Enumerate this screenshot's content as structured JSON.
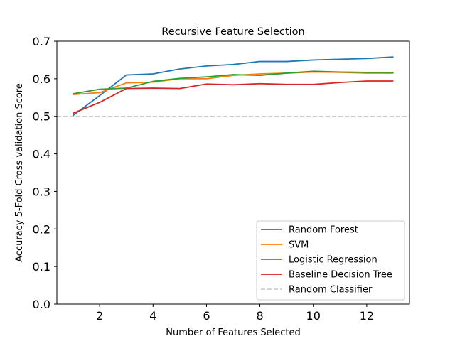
{
  "chart_data": {
    "type": "line",
    "title": "Recursive Feature Selection",
    "xlabel": "Number of Features Selected",
    "ylabel": "Accuracy 5-Fold Cross validation Score",
    "xlim": [
      0.4,
      13.6
    ],
    "ylim": [
      0.0,
      0.7
    ],
    "xticks": [
      "2",
      "4",
      "6",
      "8",
      "10",
      "12"
    ],
    "yticks": [
      "0.0",
      "0.1",
      "0.2",
      "0.3",
      "0.4",
      "0.5",
      "0.6",
      "0.7"
    ],
    "x": [
      1,
      2,
      3,
      4,
      5,
      6,
      7,
      8,
      9,
      10,
      11,
      12,
      13
    ],
    "series": [
      {
        "name": "Random Forest",
        "color": "#1f77b4",
        "values": [
          0.502,
          0.555,
          0.61,
          0.613,
          0.626,
          0.634,
          0.638,
          0.646,
          0.646,
          0.65,
          0.652,
          0.654,
          0.658
        ]
      },
      {
        "name": "SVM",
        "color": "#ff7f0e",
        "values": [
          0.558,
          0.563,
          0.589,
          0.591,
          0.6,
          0.6,
          0.609,
          0.613,
          0.615,
          0.618,
          0.617,
          0.615,
          0.615
        ]
      },
      {
        "name": "Logistic Regression",
        "color": "#2ca02c",
        "values": [
          0.56,
          0.572,
          0.575,
          0.593,
          0.601,
          0.605,
          0.611,
          0.609,
          0.615,
          0.62,
          0.618,
          0.617,
          0.617
        ]
      },
      {
        "name": "Baseline Decision Tree",
        "color": "#d62728",
        "values": [
          0.508,
          0.537,
          0.574,
          0.575,
          0.574,
          0.586,
          0.584,
          0.587,
          0.585,
          0.585,
          0.59,
          0.594,
          0.594
        ]
      }
    ],
    "reference_line": {
      "name": "Random Classifier",
      "value": 0.5,
      "color": "#cccccc",
      "style": "dashed"
    },
    "legend_position": "lower-right",
    "grid": false
  }
}
